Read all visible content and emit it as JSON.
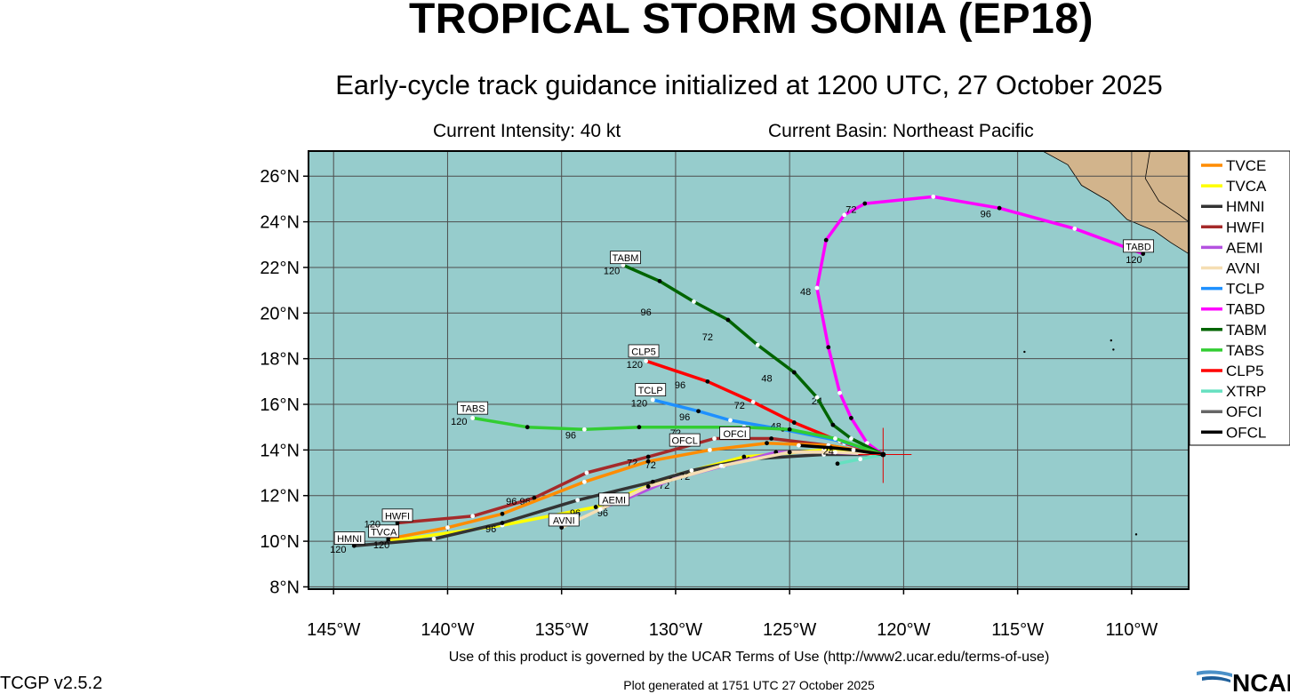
{
  "header": {
    "title": "TROPICAL STORM SONIA (EP18)",
    "subtitle": "Early-cycle track guidance initialized at 1200 UTC, 27 October 2025",
    "intensity": "Current Intensity: 40 kt",
    "basin": "Current Basin: Northeast Pacific"
  },
  "footer": {
    "terms": "Use of this product is governed by the UCAR Terms of Use (http://www2.ucar.edu/terms-of-use)",
    "version": "TCGP v2.5.2",
    "generated": "Plot generated at 1751 UTC   27 October 2025",
    "logo": "NCAR"
  },
  "map": {
    "ocean_color": "#96cccc",
    "land_color": "#d2b48c",
    "lat_labels": [
      "26°N",
      "24°N",
      "22°N",
      "20°N",
      "18°N",
      "16°N",
      "14°N",
      "12°N",
      "10°N",
      "8°N"
    ],
    "lon_labels": [
      "145°W",
      "140°W",
      "135°W",
      "130°W",
      "125°W",
      "120°W",
      "115°W",
      "110°W"
    ],
    "storm_center": {
      "lat": 13.8,
      "lon": -120.9
    }
  },
  "legend": [
    {
      "name": "TVCE",
      "color": "#ff8c00"
    },
    {
      "name": "TVCA",
      "color": "#ffff00"
    },
    {
      "name": "HMNI",
      "color": "#333333"
    },
    {
      "name": "HWFI",
      "color": "#a52a2a"
    },
    {
      "name": "AEMI",
      "color": "#b452e0"
    },
    {
      "name": "AVNI",
      "color": "#f5deb3"
    },
    {
      "name": "TCLP",
      "color": "#1e90ff"
    },
    {
      "name": "TABD",
      "color": "#ff00ff"
    },
    {
      "name": "TABM",
      "color": "#006400"
    },
    {
      "name": "TABS",
      "color": "#32cd32"
    },
    {
      "name": "CLP5",
      "color": "#ff0000"
    },
    {
      "name": "XTRP",
      "color": "#66e0c0"
    },
    {
      "name": "OFCI",
      "color": "#666666"
    },
    {
      "name": "OFCL",
      "color": "#000000"
    }
  ],
  "tracks": [
    {
      "name": "TABD",
      "color": "#ff00ff",
      "end_label": "120",
      "points": [
        [
          -120.9,
          13.8
        ],
        [
          -121.6,
          14.3
        ],
        [
          -122.3,
          15.4
        ],
        [
          -122.8,
          16.5
        ],
        [
          -123.3,
          18.5
        ],
        [
          -123.8,
          21.1
        ],
        [
          -123.4,
          23.2
        ],
        [
          -122.6,
          24.3
        ],
        [
          -121.7,
          24.8
        ],
        [
          -118.7,
          25.1
        ],
        [
          -115.8,
          24.6
        ],
        [
          -112.5,
          23.7
        ],
        [
          -109.5,
          22.6
        ]
      ],
      "ticks": [
        {
          "text": "24",
          "lon": -123.8,
          "lat": 16.0
        },
        {
          "text": "48",
          "lon": -124.3,
          "lat": 20.8
        },
        {
          "text": "72",
          "lon": -122.3,
          "lat": 24.4
        },
        {
          "text": "96",
          "lon": -116.4,
          "lat": 24.2
        }
      ]
    },
    {
      "name": "TABM",
      "color": "#006400",
      "end_label": "120",
      "points": [
        [
          -120.9,
          13.8
        ],
        [
          -122.3,
          14.5
        ],
        [
          -123.1,
          15.1
        ],
        [
          -123.8,
          16.3
        ],
        [
          -124.8,
          17.4
        ],
        [
          -126.4,
          18.6
        ],
        [
          -127.7,
          19.7
        ],
        [
          -129.2,
          20.5
        ],
        [
          -130.7,
          21.4
        ],
        [
          -132.3,
          22.1
        ]
      ],
      "ticks": [
        {
          "text": "48",
          "lon": -126.0,
          "lat": 17.0
        },
        {
          "text": "72",
          "lon": -128.6,
          "lat": 18.8
        },
        {
          "text": "96",
          "lon": -131.3,
          "lat": 19.9
        }
      ]
    },
    {
      "name": "CLP5",
      "color": "#ff0000",
      "end_label": "120",
      "points": [
        [
          -120.9,
          13.8
        ],
        [
          -122.6,
          14.3
        ],
        [
          -124.8,
          15.2
        ],
        [
          -126.6,
          16.1
        ],
        [
          -128.6,
          17.0
        ],
        [
          -131.3,
          17.9
        ]
      ],
      "ticks": [
        {
          "text": "72",
          "lon": -127.2,
          "lat": 15.8
        },
        {
          "text": "96",
          "lon": -129.8,
          "lat": 16.7
        }
      ]
    },
    {
      "name": "TCLP",
      "color": "#1e90ff",
      "end_label": "120",
      "points": [
        [
          -120.9,
          13.8
        ],
        [
          -122.8,
          14.4
        ],
        [
          -125.3,
          14.9
        ],
        [
          -127.6,
          15.3
        ],
        [
          -129.0,
          15.7
        ],
        [
          -131.0,
          16.2
        ]
      ],
      "ticks": [
        {
          "text": "48",
          "lon": -125.6,
          "lat": 14.9
        },
        {
          "text": "96",
          "lon": -129.6,
          "lat": 15.3
        }
      ]
    },
    {
      "name": "TABS",
      "color": "#32cd32",
      "end_label": "120",
      "points": [
        [
          -120.9,
          13.8
        ],
        [
          -123.0,
          14.5
        ],
        [
          -125.0,
          14.9
        ],
        [
          -127.0,
          15.0
        ],
        [
          -131.6,
          15.0
        ],
        [
          -134.0,
          14.9
        ],
        [
          -136.5,
          15.0
        ],
        [
          -138.9,
          15.4
        ]
      ],
      "ticks": [
        {
          "text": "72",
          "lon": -130.0,
          "lat": 14.6
        },
        {
          "text": "96",
          "lon": -134.6,
          "lat": 14.5
        }
      ]
    },
    {
      "name": "HWFI",
      "color": "#a52a2a",
      "end_label": "120",
      "points": [
        [
          -120.9,
          13.8
        ],
        [
          -123.3,
          14.2
        ],
        [
          -125.8,
          14.5
        ],
        [
          -128.3,
          14.5
        ],
        [
          -131.2,
          13.7
        ],
        [
          -133.9,
          13.0
        ],
        [
          -136.2,
          11.9
        ],
        [
          -138.9,
          11.1
        ],
        [
          -142.2,
          10.8
        ]
      ],
      "ticks": [
        {
          "text": "72",
          "lon": -131.9,
          "lat": 13.3
        },
        {
          "text": "96",
          "lon": -136.6,
          "lat": 11.6
        }
      ]
    },
    {
      "name": "TVCE",
      "color": "#ff8c00",
      "end_label": "120",
      "points": [
        [
          -120.9,
          13.8
        ],
        [
          -123.3,
          14.2
        ],
        [
          -126.0,
          14.3
        ],
        [
          -128.5,
          14.0
        ],
        [
          -131.2,
          13.5
        ],
        [
          -134.0,
          12.6
        ],
        [
          -137.6,
          11.2
        ],
        [
          -140.0,
          10.6
        ],
        [
          -142.6,
          10.1
        ]
      ],
      "ticks": [
        {
          "text": "72",
          "lon": -131.1,
          "lat": 13.2
        },
        {
          "text": "96",
          "lon": -137.2,
          "lat": 11.6
        }
      ]
    },
    {
      "name": "TVCA",
      "color": "#ffff00",
      "end_label": "",
      "points": [
        [
          -120.9,
          13.8
        ],
        [
          -123.5,
          14.0
        ],
        [
          -127.0,
          13.7
        ],
        [
          -130.0,
          12.9
        ],
        [
          -133.5,
          11.5
        ],
        [
          -137.6,
          10.7
        ],
        [
          -142.6,
          10.0
        ]
      ],
      "ticks": []
    },
    {
      "name": "HMNI",
      "color": "#333333",
      "end_label": "120",
      "points": [
        [
          -120.9,
          13.8
        ],
        [
          -123.5,
          13.8
        ],
        [
          -126.8,
          13.6
        ],
        [
          -129.3,
          13.1
        ],
        [
          -131.0,
          12.6
        ],
        [
          -134.3,
          11.8
        ],
        [
          -137.6,
          10.8
        ],
        [
          -140.6,
          10.1
        ],
        [
          -144.1,
          9.8
        ]
      ],
      "ticks": [
        {
          "text": "72",
          "lon": -130.5,
          "lat": 12.3
        },
        {
          "text": "96",
          "lon": -138.1,
          "lat": 10.4
        }
      ]
    },
    {
      "name": "AEMI",
      "color": "#b452e0",
      "end_label": "",
      "points": [
        [
          -120.9,
          13.8
        ],
        [
          -123.5,
          13.9
        ],
        [
          -125.6,
          13.9
        ],
        [
          -127.9,
          13.3
        ],
        [
          -130.2,
          12.7
        ],
        [
          -132.3,
          11.8
        ],
        [
          -133.1,
          11.5
        ]
      ],
      "ticks": [
        {
          "text": "72",
          "lon": -129.6,
          "lat": 12.7
        },
        {
          "text": "96",
          "lon": -133.2,
          "lat": 11.1
        }
      ]
    },
    {
      "name": "AVNI",
      "color": "#f5deb3",
      "end_label": "",
      "points": [
        [
          -120.9,
          13.8
        ],
        [
          -123.0,
          13.9
        ],
        [
          -125.0,
          13.9
        ],
        [
          -128.0,
          13.3
        ],
        [
          -131.2,
          12.4
        ],
        [
          -133.3,
          11.4
        ],
        [
          -135.0,
          10.6
        ]
      ],
      "ticks": [
        {
          "text": "96",
          "lon": -134.4,
          "lat": 11.1
        }
      ]
    },
    {
      "name": "XTRP",
      "color": "#66e0c0",
      "end_label": "",
      "points": [
        [
          -120.9,
          13.8
        ],
        [
          -121.9,
          13.6
        ],
        [
          -122.9,
          13.4
        ]
      ],
      "ticks": []
    },
    {
      "name": "OFCL",
      "color": "#000000",
      "end_label": "",
      "points": [
        [
          -120.9,
          13.8
        ],
        [
          -122.2,
          14.0
        ],
        [
          -123.2,
          14.1
        ],
        [
          -124.6,
          14.2
        ]
      ],
      "ticks": [
        {
          "text": "24",
          "lon": -123.3,
          "lat": 13.8
        }
      ]
    }
  ],
  "boxes": [
    {
      "text": "TABD",
      "lon": -109.7,
      "lat": 22.9
    },
    {
      "text": "TABM",
      "lon": -132.2,
      "lat": 22.4
    },
    {
      "text": "CLP5",
      "lon": -131.4,
      "lat": 18.3
    },
    {
      "text": "TCLP",
      "lon": -131.1,
      "lat": 16.6
    },
    {
      "text": "TABS",
      "lon": -138.9,
      "lat": 15.8
    },
    {
      "text": "OFCL",
      "lon": -129.6,
      "lat": 14.4
    },
    {
      "text": "OFCI",
      "lon": -127.4,
      "lat": 14.7
    },
    {
      "text": "AEMI",
      "lon": -132.7,
      "lat": 11.8
    },
    {
      "text": "AVNI",
      "lon": -134.9,
      "lat": 10.9
    },
    {
      "text": "HWFI",
      "lon": -142.2,
      "lat": 11.1
    },
    {
      "text": "TVCA",
      "lon": -142.8,
      "lat": 10.4
    },
    {
      "text": "HMNI",
      "lon": -144.3,
      "lat": 10.1
    }
  ],
  "end_labels": [
    {
      "text": "120",
      "lon": -109.9,
      "lat": 22.2
    },
    {
      "text": "120",
      "lon": -132.8,
      "lat": 21.7
    },
    {
      "text": "120",
      "lon": -131.8,
      "lat": 17.6
    },
    {
      "text": "120",
      "lon": -131.6,
      "lat": 15.9
    },
    {
      "text": "120",
      "lon": -139.5,
      "lat": 15.1
    },
    {
      "text": "120",
      "lon": -143.3,
      "lat": 10.6
    },
    {
      "text": "120",
      "lon": -142.9,
      "lat": 9.7
    },
    {
      "text": "120",
      "lon": -144.8,
      "lat": 9.5
    }
  ]
}
